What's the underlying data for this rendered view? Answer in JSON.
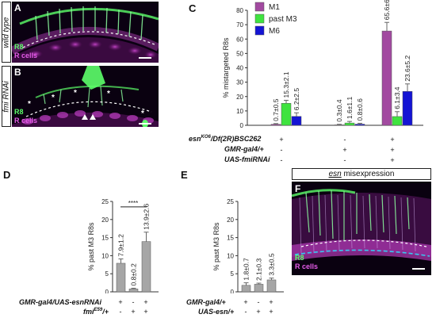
{
  "panels": {
    "A": {
      "letter": "A",
      "side_label": "wild type",
      "legend_r8": "R8",
      "legend_rcells": "R cells"
    },
    "B": {
      "letter": "B",
      "side_label": "fmi RNAi",
      "legend_r8": "R8",
      "legend_rcells": "R cells"
    },
    "F": {
      "letter": "F",
      "header": "esn misexpression",
      "header_rest": " misexpression",
      "header_gene": "esn",
      "legend_r8": "R8",
      "legend_rcells": "R cells"
    }
  },
  "colors": {
    "m1": "#a24aa0",
    "past_m3": "#3fe33f",
    "m6": "#1414d4",
    "gray": "#a6a6a6",
    "green_signal": "#5cff6a",
    "magenta_signal": "#c53fc9"
  },
  "chart_data": [
    {
      "id": "C",
      "letter": "C",
      "type": "bar",
      "ylabel": "% mistargeted R8s",
      "ylim": [
        0,
        80
      ],
      "yticks": [
        0,
        10,
        20,
        30,
        40,
        50,
        60,
        70,
        80
      ],
      "legend": [
        "M1",
        "past M3",
        "M6"
      ],
      "groups": [
        {
          "values": [
            0.7,
            15.3,
            6.2
          ],
          "labels": [
            "0.7±0.5",
            "15.3±2.1",
            "6.2±2.5"
          ],
          "errors": [
            0.5,
            2.1,
            2.5
          ]
        },
        {
          "values": [
            0.3,
            1.6,
            0.8
          ],
          "labels": [
            "0.3±0.4",
            "1.6±1.1",
            "0.8±0.6"
          ],
          "errors": [
            0.4,
            1.1,
            0.6
          ]
        },
        {
          "values": [
            65.6,
            6.1,
            23.6
          ],
          "labels": [
            "65.6±6.0",
            "6.1±3.4",
            "23.6±5.2"
          ],
          "errors": [
            6.0,
            3.4,
            5.2
          ]
        }
      ],
      "genotypes": [
        {
          "label": "esnKO6/Df(2R)BSC262",
          "main": "esn",
          "sup": "KO6",
          "rest": "/Df(2R)BSC262",
          "marks": [
            "+",
            "-",
            "+"
          ]
        },
        {
          "label": "GMR-gal4/+",
          "marks": [
            "-",
            "+",
            "+"
          ]
        },
        {
          "label": "UAS-fmiRNAi",
          "marks": [
            "-",
            "-",
            "+"
          ]
        }
      ]
    },
    {
      "id": "D",
      "letter": "D",
      "type": "bar",
      "ylabel": "% past M3 R8s",
      "ylim": [
        0,
        25
      ],
      "yticks": [
        0,
        5,
        10,
        15,
        20,
        25
      ],
      "values": [
        7.9,
        0.8,
        13.9
      ],
      "labels": [
        "7.9±1.2",
        "0.8±0.2",
        "13.9±2.6"
      ],
      "errors": [
        1.2,
        0.2,
        2.6
      ],
      "significance": "****",
      "genotypes": [
        {
          "label": "GMR-gal4/UAS-esnRNAi",
          "marks": [
            "+",
            "-",
            "+"
          ]
        },
        {
          "label": "fmiE59/+",
          "main": "fmi",
          "sup": "E59",
          "rest": "/+",
          "marks": [
            "-",
            "+",
            "+"
          ]
        }
      ]
    },
    {
      "id": "E",
      "letter": "E",
      "type": "bar",
      "ylabel": "% past M3 R8s",
      "ylim": [
        0,
        25
      ],
      "yticks": [
        0,
        5,
        10,
        15,
        20,
        25
      ],
      "values": [
        1.8,
        2.1,
        3.3
      ],
      "labels": [
        "1.8±0.7",
        "2.1±0.3",
        "3.3±0.5"
      ],
      "errors": [
        0.7,
        0.3,
        0.5
      ],
      "genotypes": [
        {
          "label": "GMR-gal4/+",
          "marks": [
            "+",
            "-",
            "+"
          ]
        },
        {
          "label": "UAS-esn/+",
          "marks": [
            "-",
            "+",
            "+"
          ]
        }
      ]
    }
  ]
}
